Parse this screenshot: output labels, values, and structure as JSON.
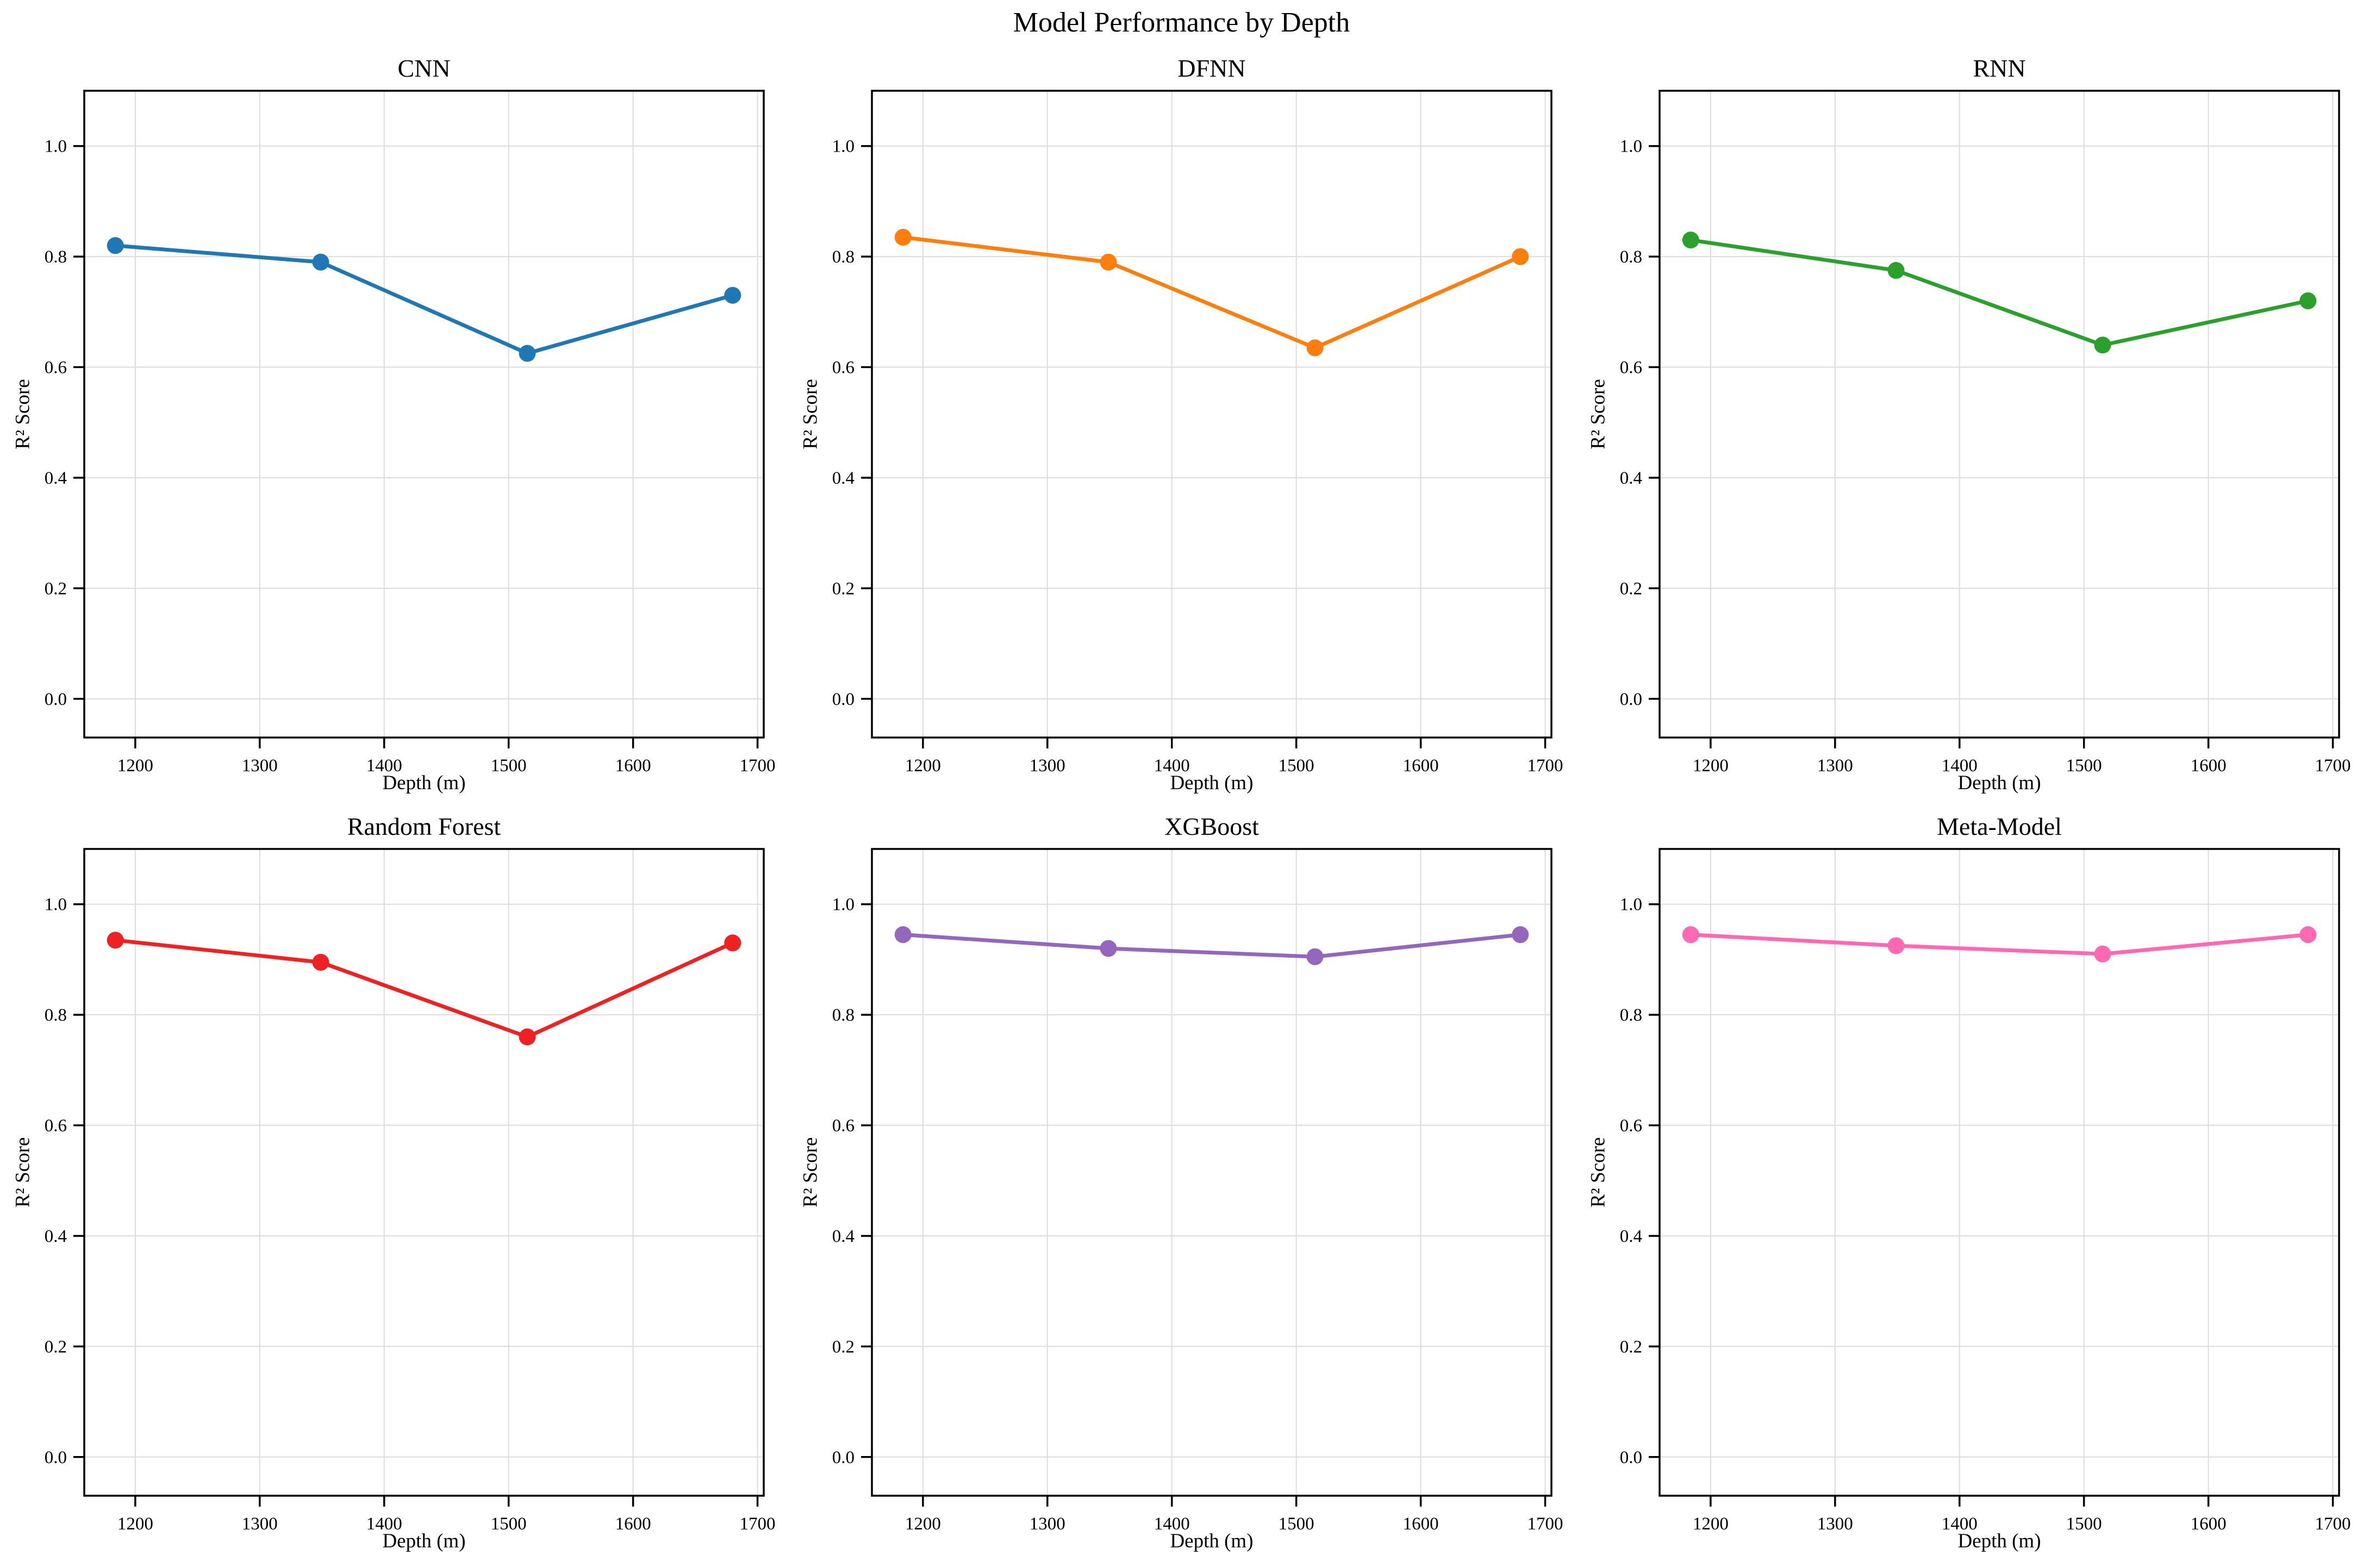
{
  "chart_data": {
    "type": "line",
    "layout": "2x3-small-multiples",
    "suptitle": "Model Performance by Depth",
    "xlabel": "Depth (m)",
    "ylabel": "R² Score",
    "x": [
      1184,
      1349,
      1515,
      1680
    ],
    "xlim": [
      1159,
      1705
    ],
    "ylim": [
      -0.07,
      1.1
    ],
    "xticks": [
      1200,
      1300,
      1400,
      1500,
      1600,
      1700
    ],
    "xtick_labels": [
      "1200",
      "1300",
      "1400",
      "1500",
      "1600",
      "1700"
    ],
    "yticks": [
      0.0,
      0.2,
      0.4,
      0.6,
      0.8,
      1.0
    ],
    "ytick_labels": [
      "0.0",
      "0.2",
      "0.4",
      "0.6",
      "0.8",
      "1.0"
    ],
    "grid": true,
    "legend": "none",
    "grid_color": "#dcdcdc",
    "frame_color": "#000000",
    "series": [
      {
        "name": "CNN",
        "color": "#1f77b4",
        "values": [
          0.82,
          0.79,
          0.625,
          0.73
        ]
      },
      {
        "name": "DFNN",
        "color": "#ff7f0e",
        "values": [
          0.835,
          0.79,
          0.635,
          0.8
        ]
      },
      {
        "name": "RNN",
        "color": "#2ca02c",
        "values": [
          0.83,
          0.775,
          0.64,
          0.72
        ]
      },
      {
        "name": "Random Forest",
        "color": "#ee2222",
        "values": [
          0.935,
          0.895,
          0.76,
          0.93
        ]
      },
      {
        "name": "XGBoost",
        "color": "#9467bd",
        "values": [
          0.945,
          0.92,
          0.905,
          0.945
        ]
      },
      {
        "name": "Meta-Model",
        "color": "#ff69b4",
        "values": [
          0.945,
          0.925,
          0.91,
          0.945
        ]
      }
    ]
  }
}
